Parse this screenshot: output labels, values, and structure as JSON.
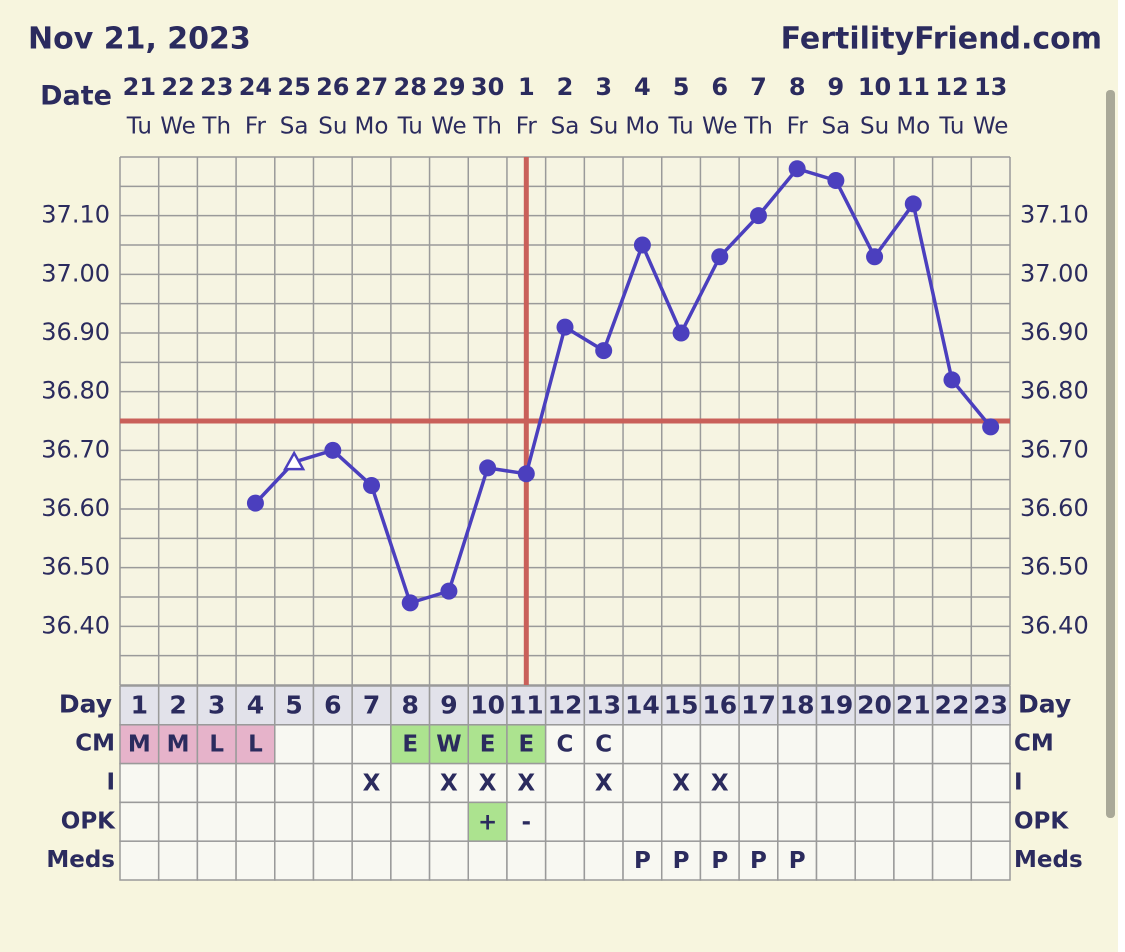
{
  "header": {
    "date": "Nov 21, 2023",
    "site": "FertilityFriend.com"
  },
  "chart_data": {
    "type": "line",
    "date_label": "Date",
    "x": [
      1,
      2,
      3,
      4,
      5,
      6,
      7,
      8,
      9,
      10,
      11,
      12,
      13,
      14,
      15,
      16,
      17,
      18,
      19,
      20,
      21,
      22,
      23
    ],
    "dates": [
      21,
      22,
      23,
      24,
      25,
      26,
      27,
      28,
      29,
      30,
      1,
      2,
      3,
      4,
      5,
      6,
      7,
      8,
      9,
      10,
      11,
      12,
      13
    ],
    "weekdays": [
      "Tu",
      "We",
      "Th",
      "Fr",
      "Sa",
      "Su",
      "Mo",
      "Tu",
      "We",
      "Th",
      "Fr",
      "Sa",
      "Su",
      "Mo",
      "Tu",
      "We",
      "Th",
      "Fr",
      "Sa",
      "Su",
      "Mo",
      "Tu",
      "We"
    ],
    "values": [
      null,
      null,
      null,
      36.61,
      36.68,
      36.7,
      36.64,
      36.44,
      36.46,
      36.67,
      36.66,
      36.91,
      36.87,
      37.05,
      36.9,
      37.03,
      37.1,
      37.18,
      37.16,
      37.03,
      37.12,
      36.82,
      36.74
    ],
    "color": "#4b3fbe",
    "excluded_days": [
      5
    ],
    "ylim": [
      36.3,
      37.2
    ],
    "yticks": [
      {
        "value": 36.4,
        "label": "36.40"
      },
      {
        "value": 36.5,
        "label": "36.50"
      },
      {
        "value": 36.6,
        "label": "36.60"
      },
      {
        "value": 36.7,
        "label": "36.70"
      },
      {
        "value": 36.8,
        "label": "36.80"
      },
      {
        "value": 36.9,
        "label": "36.90"
      },
      {
        "value": 37.0,
        "label": "37.00"
      },
      {
        "value": 37.1,
        "label": "37.10"
      }
    ],
    "ygrid": [
      36.3,
      36.35,
      36.4,
      36.45,
      36.5,
      36.55,
      36.6,
      36.65,
      36.7,
      36.75,
      36.8,
      36.85,
      36.9,
      36.95,
      37.0,
      37.05,
      37.1,
      37.15,
      37.2
    ],
    "coverline": 36.75,
    "ovulation_day": 11,
    "marker_line_color": "#c9605a"
  },
  "table": {
    "day_label": "Day",
    "rows": [
      {
        "label": "CM",
        "cells": [
          "M",
          "M",
          "L",
          "L",
          null,
          null,
          null,
          "E",
          "W",
          "E",
          "E",
          "C",
          "C",
          null,
          null,
          null,
          null,
          null,
          null,
          null,
          null,
          null,
          null
        ]
      },
      {
        "label": "I",
        "cells": [
          null,
          null,
          null,
          null,
          null,
          null,
          "X",
          null,
          "X",
          "X",
          "X",
          null,
          "X",
          null,
          "X",
          "X",
          null,
          null,
          null,
          null,
          null,
          null,
          null
        ]
      },
      {
        "label": "OPK",
        "cells": [
          null,
          null,
          null,
          null,
          null,
          null,
          null,
          null,
          null,
          "+",
          "-",
          null,
          null,
          null,
          null,
          null,
          null,
          null,
          null,
          null,
          null,
          null,
          null
        ]
      },
      {
        "label": "Meds",
        "cells": [
          null,
          null,
          null,
          null,
          null,
          null,
          null,
          null,
          null,
          null,
          null,
          null,
          null,
          "P",
          "P",
          "P",
          "P",
          "P",
          null,
          null,
          null,
          null,
          null
        ]
      }
    ],
    "cell_colors": {
      "M": "#e6b3ca",
      "L": "#e6b3ca",
      "E": "#ace38f",
      "W": "#ace38f",
      "+": "#ace38f"
    }
  }
}
